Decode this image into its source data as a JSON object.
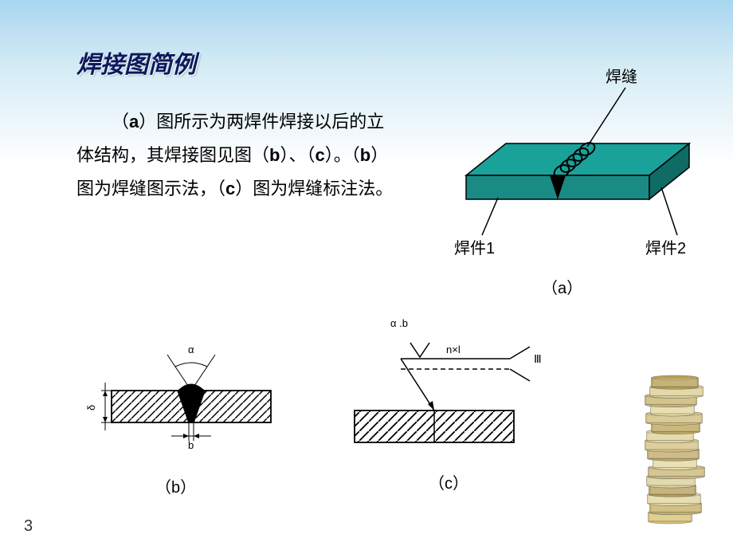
{
  "title": "焊接图简例",
  "paragraph_parts": {
    "t1": "（",
    "a": "a",
    "t2": "）图所示为两焊件焊接以后的立体结构，其焊接图见图（",
    "b": "b",
    "t3": "）、（",
    "c": "c",
    "t4": "）。（",
    "b2": "b",
    "t5": "）图为焊缝图示法，（",
    "c2": "c",
    "t6": "）图为焊缝标注法。"
  },
  "fig_a": {
    "weld_seam": "焊缝",
    "part1": "焊件1",
    "part2": "焊件2",
    "caption": "（a）",
    "plate_color": "#198b84",
    "plate_top_color": "#1aa19a",
    "side_color": "#0e6b65",
    "outline": "#000000"
  },
  "fig_b": {
    "alpha": "α",
    "delta": "δ",
    "b": "b",
    "caption": "（b）",
    "hatch_color": "#000000"
  },
  "fig_c": {
    "alpha_b": "α .b",
    "nxl": "n×l",
    "three": "Ⅲ",
    "caption": "（c）"
  },
  "page_number": "3",
  "books": {
    "colors": [
      "#d9c47a",
      "#c7b06a",
      "#e3d8a6",
      "#b89f5c",
      "#ded2a0",
      "#cdb97d",
      "#e6dca8",
      "#c0ab6d",
      "#d6c588",
      "#e1d59e",
      "#bca662",
      "#d2c080",
      "#e5daa4",
      "#c9b473",
      "#ddd09a",
      "#b6a059"
    ]
  }
}
